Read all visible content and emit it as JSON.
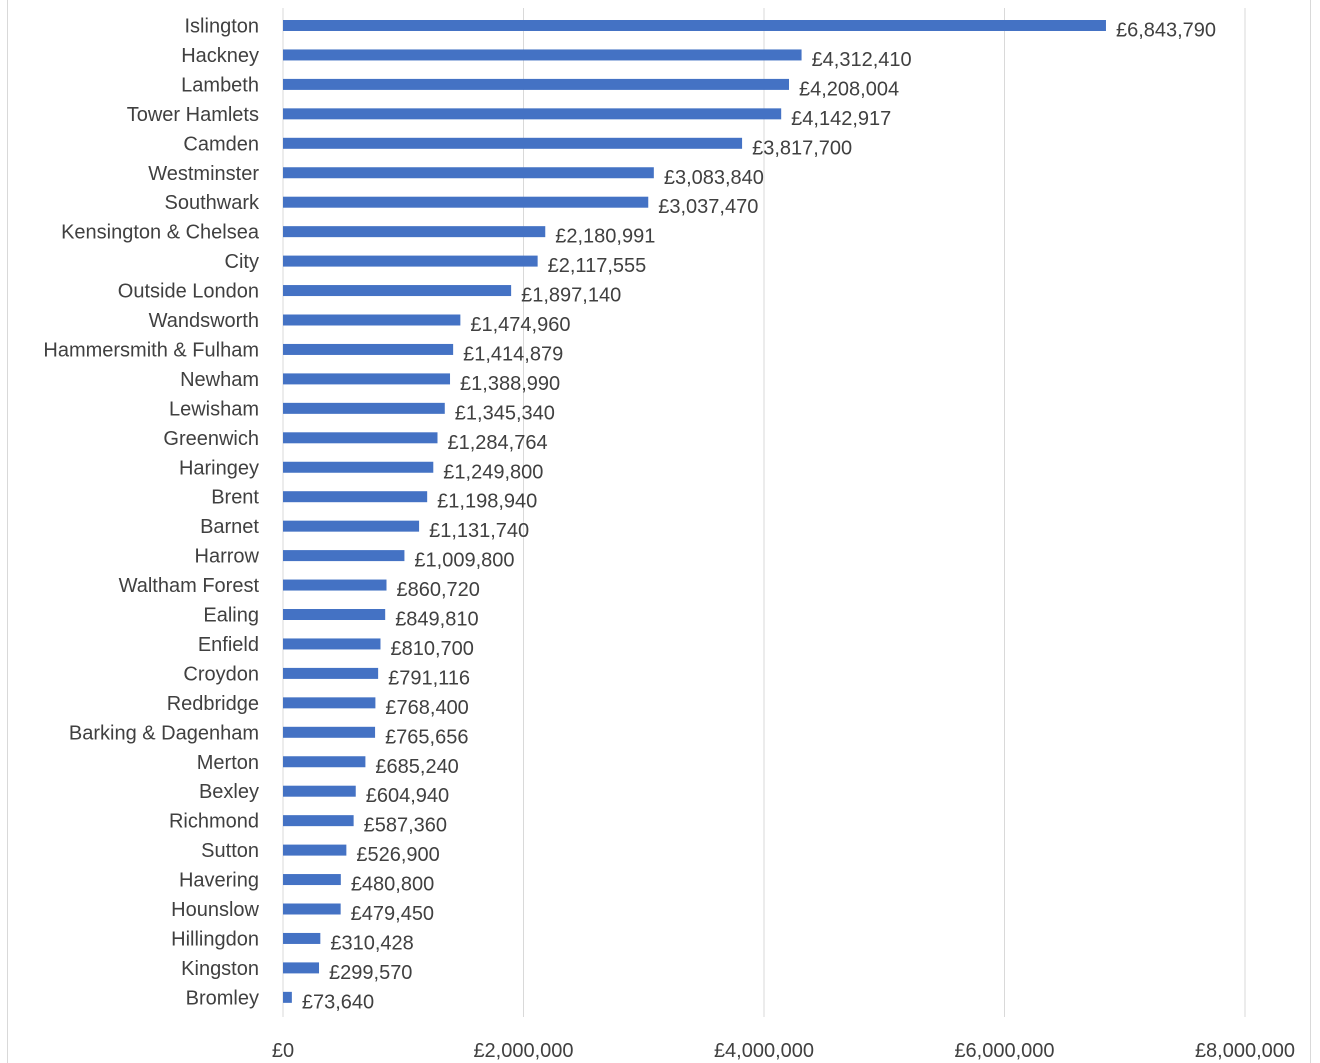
{
  "chart_data": {
    "type": "bar",
    "orientation": "horizontal",
    "title": "",
    "xlabel": "",
    "ylabel": "",
    "xlim": [
      0,
      8000000
    ],
    "grid": true,
    "legend": "none",
    "bar_color": "#4472C4",
    "x_ticks": [
      0,
      2000000,
      4000000,
      6000000,
      8000000
    ],
    "x_tick_labels": [
      "£0",
      "£2,000,000",
      "£4,000,000",
      "£6,000,000",
      "£8,000,000"
    ],
    "categories": [
      "Islington",
      "Hackney",
      "Lambeth",
      "Tower Hamlets",
      "Camden",
      "Westminster",
      "Southwark",
      "Kensington & Chelsea",
      "City",
      "Outside London",
      "Wandsworth",
      "Hammersmith & Fulham",
      "Newham",
      "Lewisham",
      "Greenwich",
      "Haringey",
      "Brent",
      "Barnet",
      "Harrow",
      "Waltham Forest",
      "Ealing",
      "Enfield",
      "Croydon",
      "Redbridge",
      "Barking & Dagenham",
      "Merton",
      "Bexley",
      "Richmond",
      "Sutton",
      "Havering",
      "Hounslow",
      "Hillingdon",
      "Kingston",
      "Bromley"
    ],
    "values": [
      6843790,
      4312410,
      4208004,
      4142917,
      3817700,
      3083840,
      3037470,
      2180991,
      2117555,
      1897140,
      1474960,
      1414879,
      1388990,
      1345340,
      1284764,
      1249800,
      1198940,
      1131740,
      1009800,
      860720,
      849810,
      810700,
      791116,
      768400,
      765656,
      685240,
      604940,
      587360,
      526900,
      480800,
      479450,
      310428,
      299570,
      73640
    ],
    "data_labels": [
      "£6,843,790",
      "£4,312,410",
      "£4,208,004",
      "£4,142,917",
      "£3,817,700",
      "£3,083,840",
      "£3,037,470",
      "£2,180,991",
      "£2,117,555",
      "£1,897,140",
      "£1,474,960",
      "£1,414,879",
      "£1,388,990",
      "£1,345,340",
      "£1,284,764",
      "£1,249,800",
      "£1,198,940",
      "£1,131,740",
      "£1,009,800",
      "£860,720",
      "£849,810",
      "£810,700",
      "£791,116",
      "£768,400",
      "£765,656",
      "£685,240",
      "£604,940",
      "£587,360",
      "£526,900",
      "£480,800",
      "£479,450",
      "£310,428",
      "£299,570",
      "£73,640"
    ]
  }
}
